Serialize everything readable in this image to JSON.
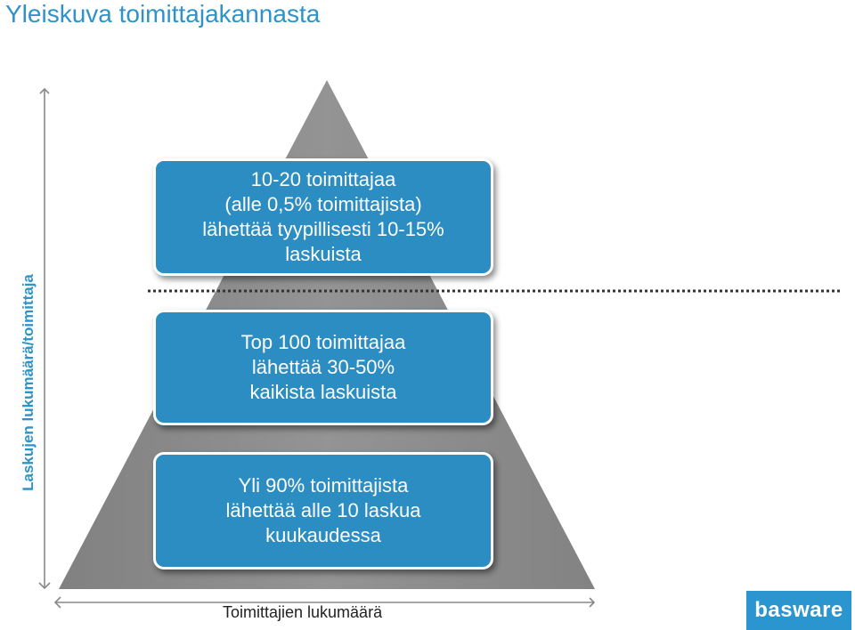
{
  "title": "Yleiskuva toimittajakannasta",
  "axes": {
    "y_label": "Laskujen lukumäärä/toimittaja",
    "x_label": "Toimittajien lukumäärä"
  },
  "tiers": [
    {
      "lines": [
        "10-20 toimittajaa",
        "(alle 0,5% toimittajista)",
        "lähettää tyypillisesti 10-15%",
        "laskuista"
      ]
    },
    {
      "lines": [
        "Top 100 toimittajaa",
        "lähettää 30-50%",
        "kaikista laskuista"
      ]
    },
    {
      "lines": [
        "Yli 90% toimittajista",
        "lähettää alle 10 laskua",
        "kuukaudessa"
      ]
    }
  ],
  "logo": {
    "text": "basware"
  },
  "colors": {
    "accent": "#2e93c8",
    "box_fill": "#2b8dc1",
    "pyramid": "#808080",
    "divider": "#333333"
  }
}
